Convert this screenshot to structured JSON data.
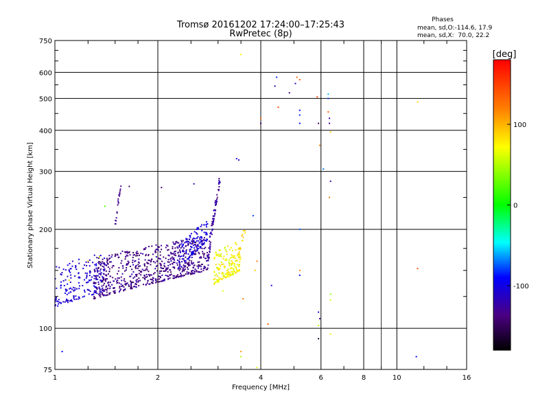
{
  "chart_data": {
    "type": "scatter",
    "title": "Tromsø 20161202 17:24:00–17:25:43",
    "subtitle": "RwPretec (8p)",
    "xlabel": "Frequency [MHz]",
    "ylabel": "Stationary phase Virtual Height [km]",
    "x_scale": "log2",
    "y_scale": "log",
    "xlim": [
      1,
      16
    ],
    "ylim": [
      75,
      750
    ],
    "x_ticks": [
      "1",
      "2",
      "4",
      "6",
      "8",
      "10",
      "16"
    ],
    "y_ticks": [
      "75",
      "100",
      "200",
      "300",
      "400",
      "500",
      "600",
      "750"
    ],
    "grid": true,
    "info": {
      "heading": "Phases",
      "line1": "mean, sd,O:-114.6, 17.9",
      "line2": "mean, sd,X:  70.0, 22.2"
    },
    "colorbar": {
      "label": "[deg]",
      "range": [
        -180,
        180
      ],
      "ticks": [
        "100",
        "0",
        "-100"
      ],
      "tick_values": [
        100,
        0,
        -100
      ]
    },
    "regions": [
      {
        "x": [
          1.0,
          1.4
        ],
        "h0": 116,
        "h1": 130,
        "spread": 40,
        "count": 200,
        "phase": [
          -120,
          -95
        ]
      },
      {
        "x": [
          1.3,
          2.8
        ],
        "h0": 123,
        "h1": 150,
        "spread": 42,
        "count": 700,
        "phase": [
          -150,
          -120
        ]
      },
      {
        "x": [
          2.3,
          2.8
        ],
        "h0": 150,
        "h1": 185,
        "spread": 30,
        "count": 120,
        "phase": [
          -110,
          -95
        ]
      },
      {
        "x": [
          1.5,
          1.56
        ],
        "h0": 200,
        "h1": 270,
        "spread": 10,
        "count": 20,
        "phase": [
          -140,
          -125
        ]
      },
      {
        "x": [
          2.8,
          3.05
        ],
        "h0": 150,
        "h1": 280,
        "spread": 20,
        "count": 80,
        "phase": [
          -140,
          -115
        ]
      },
      {
        "x": [
          2.9,
          3.5
        ],
        "h0": 135,
        "h1": 150,
        "spread": 35,
        "count": 170,
        "phase": [
          55,
          90
        ]
      },
      {
        "x": [
          3.4,
          3.6
        ],
        "h0": 160,
        "h1": 195,
        "spread": 10,
        "count": 15,
        "phase": [
          80,
          100
        ]
      }
    ],
    "points": [
      {
        "x": 3.5,
        "y": 680,
        "phase": 75
      },
      {
        "x": 4.45,
        "y": 580,
        "phase": -85
      },
      {
        "x": 4.4,
        "y": 545,
        "phase": -120
      },
      {
        "x": 4.85,
        "y": 520,
        "phase": -140
      },
      {
        "x": 5.1,
        "y": 580,
        "phase": 130
      },
      {
        "x": 5.05,
        "y": 555,
        "phase": -115
      },
      {
        "x": 5.2,
        "y": 570,
        "phase": 140
      },
      {
        "x": 5.2,
        "y": 460,
        "phase": -95
      },
      {
        "x": 5.2,
        "y": 445,
        "phase": -85
      },
      {
        "x": 5.2,
        "y": 420,
        "phase": -90
      },
      {
        "x": 4.5,
        "y": 470,
        "phase": 150
      },
      {
        "x": 4.0,
        "y": 420,
        "phase": -140
      },
      {
        "x": 4.0,
        "y": 435,
        "phase": 130
      },
      {
        "x": 5.85,
        "y": 505,
        "phase": 150
      },
      {
        "x": 5.9,
        "y": 420,
        "phase": -150
      },
      {
        "x": 6.3,
        "y": 515,
        "phase": -60
      },
      {
        "x": 6.3,
        "y": 500,
        "phase": -80
      },
      {
        "x": 6.35,
        "y": 420,
        "phase": -130
      },
      {
        "x": 6.35,
        "y": 435,
        "phase": -120
      },
      {
        "x": 6.3,
        "y": 455,
        "phase": 140
      },
      {
        "x": 6.4,
        "y": 395,
        "phase": 90
      },
      {
        "x": 5.95,
        "y": 360,
        "phase": 120
      },
      {
        "x": 6.1,
        "y": 305,
        "phase": -70
      },
      {
        "x": 6.4,
        "y": 280,
        "phase": -130
      },
      {
        "x": 6.35,
        "y": 250,
        "phase": 120
      },
      {
        "x": 3.4,
        "y": 328,
        "phase": -100
      },
      {
        "x": 3.45,
        "y": 325,
        "phase": -120
      },
      {
        "x": 3.8,
        "y": 220,
        "phase": -80
      },
      {
        "x": 1.65,
        "y": 270,
        "phase": -150
      },
      {
        "x": 2.05,
        "y": 268,
        "phase": -140
      },
      {
        "x": 2.55,
        "y": 275,
        "phase": -120
      },
      {
        "x": 1.4,
        "y": 235,
        "phase": 20
      },
      {
        "x": 5.2,
        "y": 200,
        "phase": -75
      },
      {
        "x": 3.9,
        "y": 160,
        "phase": 120
      },
      {
        "x": 3.85,
        "y": 150,
        "phase": 90
      },
      {
        "x": 3.1,
        "y": 130,
        "phase": 60
      },
      {
        "x": 3.55,
        "y": 123,
        "phase": 120
      },
      {
        "x": 4.3,
        "y": 135,
        "phase": -100
      },
      {
        "x": 5.2,
        "y": 150,
        "phase": 120
      },
      {
        "x": 5.2,
        "y": 145,
        "phase": -90
      },
      {
        "x": 5.9,
        "y": 112,
        "phase": -100
      },
      {
        "x": 5.95,
        "y": 107,
        "phase": -140
      },
      {
        "x": 6.4,
        "y": 127,
        "phase": 40
      },
      {
        "x": 6.4,
        "y": 122,
        "phase": 60
      },
      {
        "x": 5.9,
        "y": 102,
        "phase": 50
      },
      {
        "x": 4.2,
        "y": 103,
        "phase": 140
      },
      {
        "x": 5.9,
        "y": 93,
        "phase": -165
      },
      {
        "x": 3.5,
        "y": 85,
        "phase": 110
      },
      {
        "x": 3.5,
        "y": 82,
        "phase": 50
      },
      {
        "x": 3.9,
        "y": 76,
        "phase": 60
      },
      {
        "x": 6.4,
        "y": 96,
        "phase": 80
      },
      {
        "x": 1.05,
        "y": 85,
        "phase": -90
      },
      {
        "x": 11.5,
        "y": 488,
        "phase": 90
      },
      {
        "x": 11.5,
        "y": 152,
        "phase": 140
      },
      {
        "x": 11.4,
        "y": 82,
        "phase": -90
      },
      {
        "x": 1.1,
        "y": 140,
        "phase": 90
      },
      {
        "x": 1.25,
        "y": 160,
        "phase": 100
      },
      {
        "x": 1.35,
        "y": 165,
        "phase": 60
      }
    ]
  }
}
